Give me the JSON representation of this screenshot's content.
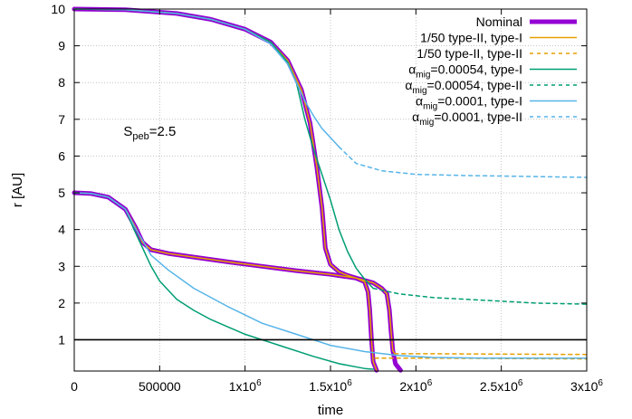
{
  "chart_data": {
    "type": "line",
    "xlabel": "time",
    "ylabel": "r [AU]",
    "xlim": [
      0,
      3000000
    ],
    "ylim": [
      0.15,
      10
    ],
    "grid": true,
    "annotation": {
      "text": "S",
      "sub": "peb",
      "suffix": "=2.5",
      "x": 500000,
      "y": 6.5
    },
    "xticks": [
      {
        "value": 0,
        "label": "0"
      },
      {
        "value": 500000,
        "label": "500000"
      },
      {
        "value": 1000000,
        "label": "1x10",
        "sup": "6"
      },
      {
        "value": 1500000,
        "label": "1.5x10",
        "sup": "6"
      },
      {
        "value": 2000000,
        "label": "2x10",
        "sup": "6"
      },
      {
        "value": 2500000,
        "label": "2.5x10",
        "sup": "6"
      },
      {
        "value": 3000000,
        "label": "3x10",
        "sup": "6"
      }
    ],
    "yticks": [
      1,
      2,
      3,
      4,
      5,
      6,
      7,
      8,
      9,
      10
    ],
    "reference_line": {
      "y": 1,
      "color": "#000000"
    },
    "legend_position": "top-right",
    "series": [
      {
        "name": "Nominal",
        "color": "#9400d3",
        "dash": false,
        "width": 5,
        "legend": true,
        "points": [
          [
            0,
            10.0
          ],
          [
            300000,
            9.98
          ],
          [
            600000,
            9.88
          ],
          [
            800000,
            9.72
          ],
          [
            1000000,
            9.45
          ],
          [
            1150000,
            9.1
          ],
          [
            1250000,
            8.6
          ],
          [
            1330000,
            7.8
          ],
          [
            1380000,
            6.9
          ],
          [
            1420000,
            5.7
          ],
          [
            1450000,
            4.6
          ],
          [
            1470000,
            3.5
          ],
          [
            1500000,
            3.05
          ],
          [
            1550000,
            2.85
          ],
          [
            1600000,
            2.75
          ],
          [
            1650000,
            2.68
          ],
          [
            1700000,
            2.58
          ],
          [
            1720000,
            2.3
          ],
          [
            1730000,
            1.8
          ],
          [
            1740000,
            1.0
          ],
          [
            1750000,
            0.4
          ],
          [
            1770000,
            0.17
          ]
        ]
      },
      {
        "name": "",
        "color": "#9400d3",
        "dash": false,
        "width": 5,
        "legend": false,
        "points": [
          [
            0,
            5.0
          ],
          [
            100000,
            4.98
          ],
          [
            200000,
            4.88
          ],
          [
            300000,
            4.55
          ],
          [
            360000,
            4.05
          ],
          [
            400000,
            3.65
          ],
          [
            450000,
            3.45
          ],
          [
            550000,
            3.35
          ],
          [
            700000,
            3.25
          ],
          [
            900000,
            3.12
          ],
          [
            1100000,
            3.0
          ],
          [
            1300000,
            2.88
          ],
          [
            1500000,
            2.78
          ],
          [
            1650000,
            2.68
          ],
          [
            1750000,
            2.55
          ],
          [
            1800000,
            2.4
          ],
          [
            1830000,
            2.25
          ],
          [
            1845000,
            1.8
          ],
          [
            1855000,
            1.2
          ],
          [
            1865000,
            0.7
          ],
          [
            1880000,
            0.35
          ],
          [
            1910000,
            0.17
          ]
        ]
      },
      {
        "name": "1/50 type-II, type-I",
        "color": "#e69f00",
        "dash": false,
        "width": 1.5,
        "legend": true,
        "points": [
          [
            0,
            10.0
          ],
          [
            300000,
            9.98
          ],
          [
            600000,
            9.88
          ],
          [
            800000,
            9.72
          ],
          [
            1000000,
            9.45
          ],
          [
            1150000,
            9.1
          ],
          [
            1250000,
            8.6
          ],
          [
            1330000,
            7.8
          ],
          [
            1380000,
            6.9
          ],
          [
            1420000,
            5.7
          ],
          [
            1450000,
            4.6
          ],
          [
            1470000,
            3.5
          ],
          [
            1500000,
            3.05
          ],
          [
            1550000,
            2.85
          ],
          [
            1600000,
            2.75
          ],
          [
            1650000,
            2.68
          ],
          [
            1700000,
            2.58
          ],
          [
            1720000,
            2.3
          ],
          [
            1730000,
            1.8
          ],
          [
            1740000,
            1.0
          ],
          [
            1750000,
            0.4
          ],
          [
            1770000,
            0.17
          ]
        ]
      },
      {
        "name": "",
        "color": "#e69f00",
        "dash": false,
        "width": 1.5,
        "legend": false,
        "points": [
          [
            0,
            5.0
          ],
          [
            100000,
            4.98
          ],
          [
            200000,
            4.88
          ],
          [
            300000,
            4.55
          ],
          [
            360000,
            4.05
          ],
          [
            400000,
            3.65
          ],
          [
            450000,
            3.45
          ],
          [
            550000,
            3.35
          ],
          [
            700000,
            3.25
          ],
          [
            900000,
            3.12
          ],
          [
            1100000,
            3.0
          ],
          [
            1300000,
            2.88
          ],
          [
            1500000,
            2.78
          ],
          [
            1650000,
            2.68
          ],
          [
            1750000,
            2.55
          ],
          [
            1800000,
            2.4
          ],
          [
            1830000,
            2.25
          ],
          [
            1845000,
            1.8
          ],
          [
            1855000,
            1.2
          ],
          [
            1865000,
            0.7
          ],
          [
            1875000,
            0.62
          ]
        ]
      },
      {
        "name": "1/50 type-II, type-II",
        "color": "#e69f00",
        "dash": true,
        "width": 1.5,
        "legend": true,
        "points": [
          [
            1875000,
            0.62
          ],
          [
            2100000,
            0.62
          ],
          [
            2500000,
            0.61
          ],
          [
            3000000,
            0.6
          ]
        ]
      },
      {
        "name": "",
        "color": "#e69f00",
        "dash": true,
        "width": 1.5,
        "legend": false,
        "points": [
          [
            1760000,
            0.5
          ],
          [
            2100000,
            0.5
          ],
          [
            2500000,
            0.49
          ],
          [
            3000000,
            0.48
          ]
        ]
      },
      {
        "name": "α_mig=0.00054, type-I",
        "color": "#009e73",
        "dash": false,
        "width": 1.5,
        "legend": true,
        "points": [
          [
            0,
            10.0
          ],
          [
            300000,
            9.98
          ],
          [
            600000,
            9.88
          ],
          [
            800000,
            9.72
          ],
          [
            1000000,
            9.45
          ],
          [
            1150000,
            9.1
          ],
          [
            1250000,
            8.55
          ],
          [
            1300000,
            8.0
          ],
          [
            1350000,
            7.0
          ],
          [
            1400000,
            6.2
          ],
          [
            1450000,
            5.5
          ],
          [
            1500000,
            4.8
          ],
          [
            1550000,
            4.0
          ],
          [
            1600000,
            3.4
          ],
          [
            1650000,
            2.95
          ],
          [
            1700000,
            2.65
          ],
          [
            1750000,
            2.4
          ]
        ]
      },
      {
        "name": "",
        "color": "#009e73",
        "dash": false,
        "width": 1.5,
        "legend": false,
        "points": [
          [
            0,
            5.0
          ],
          [
            100000,
            4.98
          ],
          [
            200000,
            4.88
          ],
          [
            300000,
            4.55
          ],
          [
            350000,
            4.0
          ],
          [
            400000,
            3.5
          ],
          [
            450000,
            3.0
          ],
          [
            500000,
            2.6
          ],
          [
            600000,
            2.1
          ],
          [
            700000,
            1.8
          ],
          [
            800000,
            1.55
          ],
          [
            1000000,
            1.15
          ],
          [
            1200000,
            0.85
          ],
          [
            1400000,
            0.55
          ],
          [
            1550000,
            0.35
          ],
          [
            1700000,
            0.22
          ],
          [
            1750000,
            0.2
          ]
        ]
      },
      {
        "name": "α_mig=0.00054, type-II",
        "color": "#009e73",
        "dash": true,
        "width": 1.5,
        "legend": true,
        "points": [
          [
            1750000,
            2.4
          ],
          [
            1900000,
            2.25
          ],
          [
            2100000,
            2.15
          ],
          [
            2300000,
            2.1
          ],
          [
            2500000,
            2.05
          ],
          [
            2700000,
            2.0
          ],
          [
            3000000,
            1.97
          ]
        ]
      },
      {
        "name": "α_mig=0.0001, type-I",
        "color": "#56b4e9",
        "dash": false,
        "width": 1.5,
        "legend": true,
        "points": [
          [
            0,
            10.0
          ],
          [
            300000,
            9.98
          ],
          [
            600000,
            9.88
          ],
          [
            800000,
            9.72
          ],
          [
            1000000,
            9.45
          ],
          [
            1150000,
            9.05
          ],
          [
            1250000,
            8.5
          ],
          [
            1300000,
            8.0
          ],
          [
            1350000,
            7.5
          ],
          [
            1400000,
            7.1
          ],
          [
            1450000,
            6.75
          ],
          [
            1500000,
            6.5
          ],
          [
            1550000,
            6.25
          ]
        ]
      },
      {
        "name": "",
        "color": "#56b4e9",
        "dash": false,
        "width": 1.5,
        "legend": false,
        "points": [
          [
            0,
            5.0
          ],
          [
            100000,
            4.98
          ],
          [
            200000,
            4.88
          ],
          [
            300000,
            4.55
          ],
          [
            350000,
            4.1
          ],
          [
            400000,
            3.7
          ],
          [
            450000,
            3.3
          ],
          [
            550000,
            2.9
          ],
          [
            700000,
            2.4
          ],
          [
            900000,
            1.9
          ],
          [
            1100000,
            1.45
          ],
          [
            1300000,
            1.15
          ],
          [
            1500000,
            0.85
          ],
          [
            1700000,
            0.68
          ],
          [
            1900000,
            0.57
          ],
          [
            2100000,
            0.52
          ],
          [
            2400000,
            0.5
          ],
          [
            2700000,
            0.5
          ],
          [
            3000000,
            0.5
          ]
        ]
      },
      {
        "name": "α_mig=0.0001, type-II",
        "color": "#56b4e9",
        "dash": true,
        "width": 1.5,
        "legend": true,
        "points": [
          [
            1550000,
            6.25
          ],
          [
            1650000,
            5.8
          ],
          [
            1800000,
            5.6
          ],
          [
            2000000,
            5.5
          ],
          [
            2300000,
            5.47
          ],
          [
            2600000,
            5.45
          ],
          [
            3000000,
            5.42
          ]
        ]
      }
    ]
  }
}
